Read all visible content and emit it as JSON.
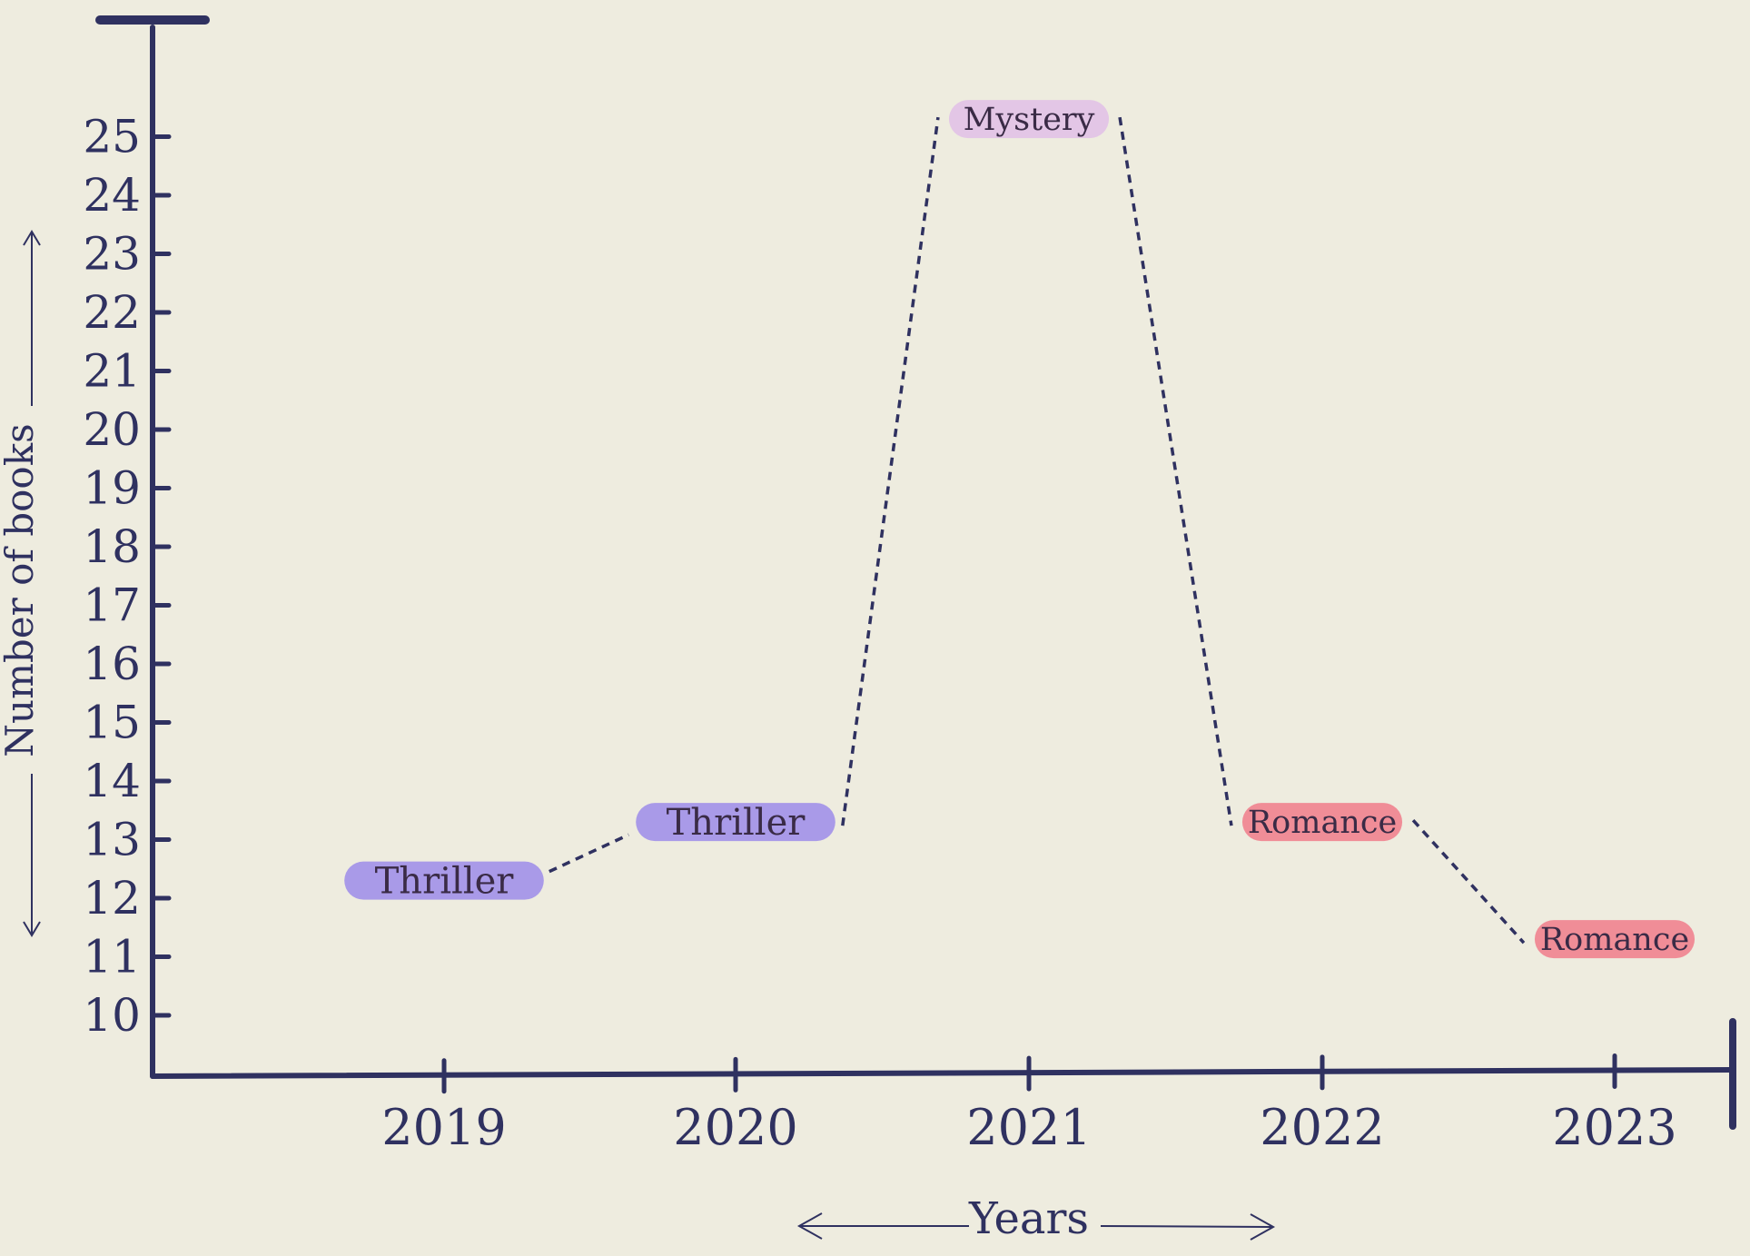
{
  "chart_data": {
    "type": "line",
    "title": "",
    "xlabel": "Years",
    "ylabel": "Number of books",
    "categories": [
      "2019",
      "2020",
      "2021",
      "2022",
      "2023"
    ],
    "yticks": [
      "10",
      "11",
      "12",
      "13",
      "14",
      "15",
      "16",
      "17",
      "18",
      "19",
      "20",
      "21",
      "22",
      "23",
      "24",
      "25"
    ],
    "ylim": [
      9,
      27
    ],
    "grid": false,
    "legend": "none",
    "points": [
      {
        "year": "2019",
        "value": 12.3,
        "genre": "Thriller"
      },
      {
        "year": "2020",
        "value": 13.3,
        "genre": "Thriller"
      },
      {
        "year": "2021",
        "value": 25.3,
        "genre": "Mystery"
      },
      {
        "year": "2022",
        "value": 13.3,
        "genre": "Romance"
      },
      {
        "year": "2023",
        "value": 11.3,
        "genre": "Romance"
      }
    ],
    "genre_colors": {
      "Thriller": "#a99ae8",
      "Mystery": "#e3c6e6",
      "Romance": "#f08d97"
    },
    "axis_color": "#2f3160",
    "line_style": "dashed"
  }
}
